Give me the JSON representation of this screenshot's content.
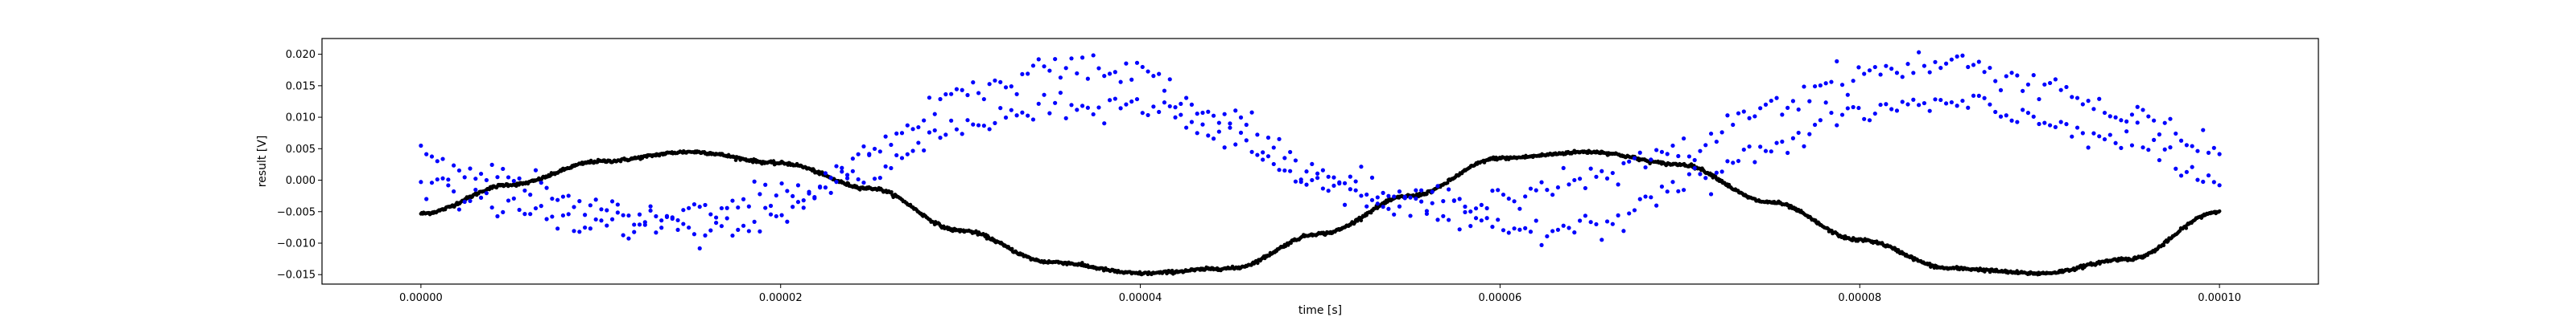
{
  "chart_data": {
    "type": "scatter",
    "title": "",
    "xlabel": "time [s]",
    "ylabel": "result [V]",
    "xlim": [
      -5.5e-06,
      0.0001055
    ],
    "ylim": [
      -0.0165,
      0.0225
    ],
    "x_ticks": [
      0,
      2e-05,
      4e-05,
      6e-05,
      8e-05,
      0.0001
    ],
    "x_tick_labels": [
      "0.00000",
      "0.00002",
      "0.00004",
      "0.00006",
      "0.00008",
      "0.00010"
    ],
    "y_ticks": [
      -0.015,
      -0.01,
      -0.005,
      0.0,
      0.005,
      0.01,
      0.015,
      0.02
    ],
    "y_tick_labels": [
      "−0.015",
      "−0.010",
      "−0.005",
      "0.000",
      "0.005",
      "0.010",
      "0.015",
      "0.020"
    ],
    "grid": false,
    "colors": {
      "series_blue": "#0000ff",
      "series_black": "#000000"
    },
    "series": [
      {
        "color": "#000000",
        "marker_size": "dense",
        "x": [
          0,
          5e-06,
          1e-05,
          1.5e-05,
          2e-05,
          2.5e-05,
          3e-05,
          3.5e-05,
          4e-05,
          4.5e-05,
          5e-05,
          5.5e-05,
          6e-05,
          6.5e-05,
          7e-05,
          7.5e-05,
          8e-05,
          8.5e-05,
          9e-05,
          9.5e-05,
          0.0001
        ],
        "y": [
          -0.0053,
          -0.0007,
          0.003,
          0.0045,
          0.0027,
          -0.0013,
          -0.008,
          -0.013,
          -0.0148,
          -0.014,
          -0.0085,
          -0.0025,
          0.0035,
          0.0045,
          0.0025,
          -0.0035,
          -0.0095,
          -0.014,
          -0.0148,
          -0.0125,
          -0.005
        ]
      },
      {
        "color": "#0000ff",
        "marker_size": "small",
        "x": [
          0,
          5e-06,
          1e-05,
          1.5e-05,
          2e-05,
          2.5e-05,
          3e-05,
          3.5e-05,
          4e-05,
          4.5e-05,
          5e-05,
          5.5e-05,
          6e-05,
          6.5e-05,
          7e-05,
          7.5e-05,
          8e-05,
          8.5e-05,
          9e-05,
          9.5e-05,
          0.0001
        ],
        "y": [
          0.0045,
          0.0,
          -0.005,
          -0.008,
          -0.006,
          0.005,
          0.014,
          0.018,
          0.017,
          0.01,
          0.001,
          -0.003,
          -0.0025,
          0.0,
          0.0045,
          0.012,
          0.017,
          0.0185,
          0.0155,
          0.01,
          0.0045
        ]
      },
      {
        "color": "#0000ff",
        "marker_size": "small",
        "x": [
          0,
          5e-06,
          1e-05,
          1.5e-05,
          2e-05,
          2.5e-05,
          3e-05,
          3.5e-05,
          4e-05,
          4.5e-05,
          5e-05,
          5.5e-05,
          6e-05,
          6.5e-05,
          7e-05,
          7.5e-05,
          8e-05,
          8.5e-05,
          9e-05,
          9.5e-05,
          0.0001
        ],
        "y": [
          -0.0005,
          -0.0045,
          -0.0075,
          -0.0055,
          -0.002,
          0.001,
          0.0085,
          0.011,
          0.012,
          0.0065,
          -0.0005,
          -0.0045,
          -0.008,
          -0.007,
          -0.001,
          0.005,
          0.011,
          0.012,
          0.0095,
          0.006,
          -0.0005
        ]
      }
    ]
  }
}
